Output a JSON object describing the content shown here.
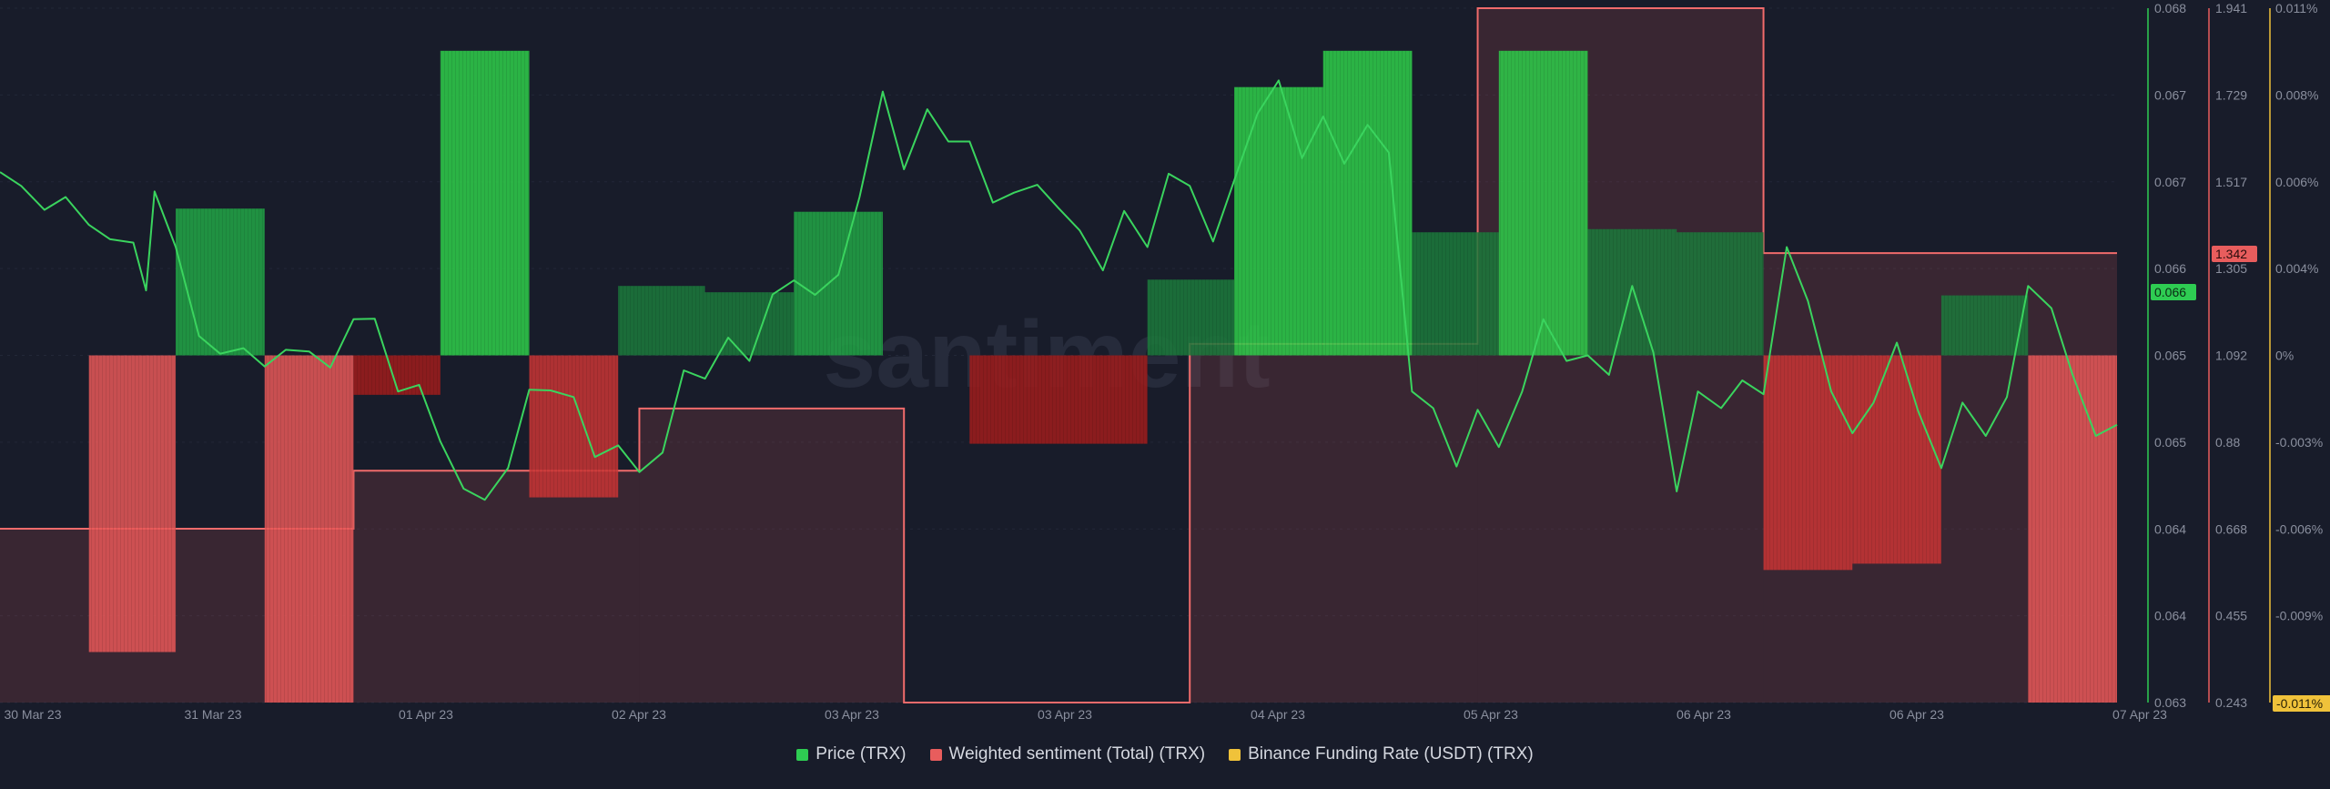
{
  "chart_data": {
    "type": "bar",
    "watermark": "santiment",
    "x_ticks": [
      "30 Mar 23",
      "31 Mar 23",
      "01 Apr 23",
      "02 Apr 23",
      "03 Apr 23",
      "03 Apr 23",
      "04 Apr 23",
      "05 Apr 23",
      "06 Apr 23",
      "06 Apr 23",
      "07 Apr 23"
    ],
    "price_axis": {
      "ticks": [
        "0.068",
        "0.067",
        "0.067",
        "0.066",
        "0.065",
        "0.065",
        "0.064",
        "0.064",
        "0.063"
      ],
      "current": "0.066"
    },
    "sentiment_axis": {
      "ticks": [
        "1.941",
        "1.729",
        "1.517",
        "1.305",
        "1.092",
        "0.88",
        "0.668",
        "0.455",
        "0.243"
      ],
      "current": "1.342",
      "min": 0.243,
      "max": 1.941
    },
    "funding_axis": {
      "ticks": [
        "0.011%",
        "0.008%",
        "0.006%",
        "0.004%",
        "0%",
        "-0.003%",
        "-0.006%",
        "-0.009%"
      ],
      "current": "-0.011%",
      "min": -0.011,
      "max": 0.011
    },
    "colors": {
      "price": "#2ecc52",
      "sentiment": "#e85d5d",
      "funding": "#f0c23a",
      "background": "#181c2a"
    },
    "funding_bars": [
      {
        "start": 0.0,
        "end": 0.042,
        "value": 0
      },
      {
        "start": 0.042,
        "end": 0.083,
        "value": -0.0094
      },
      {
        "start": 0.083,
        "end": 0.125,
        "value": 0.00465
      },
      {
        "start": 0.125,
        "end": 0.167,
        "value": -0.011
      },
      {
        "start": 0.167,
        "end": 0.208,
        "value": -0.00125
      },
      {
        "start": 0.208,
        "end": 0.25,
        "value": 0.00965
      },
      {
        "start": 0.25,
        "end": 0.292,
        "value": -0.0045
      },
      {
        "start": 0.292,
        "end": 0.333,
        "value": 0.0022
      },
      {
        "start": 0.333,
        "end": 0.375,
        "value": 0.002
      },
      {
        "start": 0.375,
        "end": 0.417,
        "value": 0.00455
      },
      {
        "start": 0.417,
        "end": 0.458,
        "value": 0
      },
      {
        "start": 0.458,
        "end": 0.5,
        "value": -0.0028
      },
      {
        "start": 0.5,
        "end": 0.542,
        "value": -0.0028
      },
      {
        "start": 0.542,
        "end": 0.583,
        "value": 0.0024
      },
      {
        "start": 0.583,
        "end": 0.625,
        "value": 0.0085
      },
      {
        "start": 0.625,
        "end": 0.667,
        "value": 0.00965
      },
      {
        "start": 0.667,
        "end": 0.708,
        "value": 0.0039
      },
      {
        "start": 0.708,
        "end": 0.75,
        "value": 0.00965
      },
      {
        "start": 0.75,
        "end": 0.792,
        "value": 0.004
      },
      {
        "start": 0.792,
        "end": 0.833,
        "value": 0.0039
      },
      {
        "start": 0.833,
        "end": 0.875,
        "value": -0.0068
      },
      {
        "start": 0.875,
        "end": 0.917,
        "value": -0.0066
      },
      {
        "start": 0.917,
        "end": 0.958,
        "value": 0.0019
      },
      {
        "start": 0.958,
        "end": 1.0,
        "value": -0.011
      }
    ],
    "sentiment_steps": [
      {
        "start": 0.0,
        "end": 0.167,
        "value": 0.668
      },
      {
        "start": 0.167,
        "end": 0.302,
        "value": 0.81
      },
      {
        "start": 0.302,
        "end": 0.427,
        "value": 0.962
      },
      {
        "start": 0.427,
        "end": 0.562,
        "value": 0.243
      },
      {
        "start": 0.562,
        "end": 0.698,
        "value": 1.12
      },
      {
        "start": 0.698,
        "end": 0.833,
        "value": 1.941
      },
      {
        "start": 0.833,
        "end": 0.958,
        "value": 1.342
      },
      {
        "start": 0.958,
        "end": 1.0,
        "value": 1.342
      }
    ],
    "price_series": [
      [
        0.0,
        0.0655
      ],
      [
        0.01,
        0.063
      ],
      [
        0.021,
        0.0587
      ],
      [
        0.031,
        0.061
      ],
      [
        0.042,
        0.056
      ],
      [
        0.052,
        0.0534
      ],
      [
        0.063,
        0.0528
      ],
      [
        0.069,
        0.0442
      ],
      [
        0.073,
        0.062
      ],
      [
        0.083,
        0.052
      ],
      [
        0.094,
        0.036
      ],
      [
        0.104,
        0.0328
      ],
      [
        0.115,
        0.0338
      ],
      [
        0.125,
        0.0305
      ],
      [
        0.135,
        0.0335
      ],
      [
        0.146,
        0.0332
      ],
      [
        0.156,
        0.0303
      ],
      [
        0.167,
        0.039
      ],
      [
        0.177,
        0.0391
      ],
      [
        0.188,
        0.026
      ],
      [
        0.198,
        0.0272
      ],
      [
        0.208,
        0.017
      ],
      [
        0.219,
        0.0085
      ],
      [
        0.229,
        0.0065
      ],
      [
        0.24,
        0.0122
      ],
      [
        0.25,
        0.0263
      ],
      [
        0.26,
        0.0262
      ],
      [
        0.271,
        0.025
      ],
      [
        0.281,
        0.0142
      ],
      [
        0.292,
        0.0163
      ],
      [
        0.302,
        0.0115
      ],
      [
        0.313,
        0.015
      ],
      [
        0.323,
        0.0298
      ],
      [
        0.333,
        0.0283
      ],
      [
        0.344,
        0.0357
      ],
      [
        0.354,
        0.0315
      ],
      [
        0.365,
        0.0435
      ],
      [
        0.375,
        0.046
      ],
      [
        0.385,
        0.0434
      ],
      [
        0.396,
        0.047
      ],
      [
        0.406,
        0.061
      ],
      [
        0.417,
        0.08
      ],
      [
        0.427,
        0.066
      ],
      [
        0.438,
        0.0768
      ],
      [
        0.448,
        0.071
      ],
      [
        0.458,
        0.071
      ],
      [
        0.469,
        0.06
      ],
      [
        0.479,
        0.0618
      ],
      [
        0.49,
        0.0632
      ],
      [
        0.5,
        0.059
      ],
      [
        0.51,
        0.055
      ],
      [
        0.521,
        0.0478
      ],
      [
        0.531,
        0.0585
      ],
      [
        0.542,
        0.052
      ],
      [
        0.552,
        0.0652
      ],
      [
        0.562,
        0.063
      ],
      [
        0.573,
        0.053
      ],
      [
        0.583,
        0.064
      ],
      [
        0.594,
        0.076
      ],
      [
        0.604,
        0.082
      ],
      [
        0.615,
        0.068
      ],
      [
        0.625,
        0.0755
      ],
      [
        0.635,
        0.067
      ],
      [
        0.646,
        0.074
      ],
      [
        0.656,
        0.069
      ],
      [
        0.667,
        0.026
      ],
      [
        0.677,
        0.023
      ],
      [
        0.688,
        0.0125
      ],
      [
        0.698,
        0.0227
      ],
      [
        0.708,
        0.016
      ],
      [
        0.719,
        0.026
      ],
      [
        0.729,
        0.039
      ],
      [
        0.74,
        0.0315
      ],
      [
        0.75,
        0.0325
      ],
      [
        0.76,
        0.029
      ],
      [
        0.771,
        0.045
      ],
      [
        0.781,
        0.033
      ],
      [
        0.792,
        0.008
      ],
      [
        0.802,
        0.026
      ],
      [
        0.813,
        0.023
      ],
      [
        0.823,
        0.028
      ],
      [
        0.833,
        0.0255
      ],
      [
        0.844,
        0.052
      ],
      [
        0.854,
        0.0423
      ],
      [
        0.865,
        0.026
      ],
      [
        0.875,
        0.0185
      ],
      [
        0.885,
        0.024
      ],
      [
        0.896,
        0.0348
      ],
      [
        0.906,
        0.0225
      ],
      [
        0.917,
        0.0122
      ],
      [
        0.927,
        0.024
      ],
      [
        0.938,
        0.018
      ],
      [
        0.948,
        0.025
      ],
      [
        0.958,
        0.045
      ],
      [
        0.969,
        0.041
      ],
      [
        0.979,
        0.029
      ],
      [
        0.99,
        0.018
      ],
      [
        1.0,
        0.02
      ]
    ]
  },
  "legend": [
    {
      "label": "Price (TRX)",
      "color": "#2ecc52"
    },
    {
      "label": "Weighted sentiment (Total) (TRX)",
      "color": "#e85d5d"
    },
    {
      "label": "Binance Funding Rate (USDT) (TRX)",
      "color": "#f0c23a"
    }
  ]
}
